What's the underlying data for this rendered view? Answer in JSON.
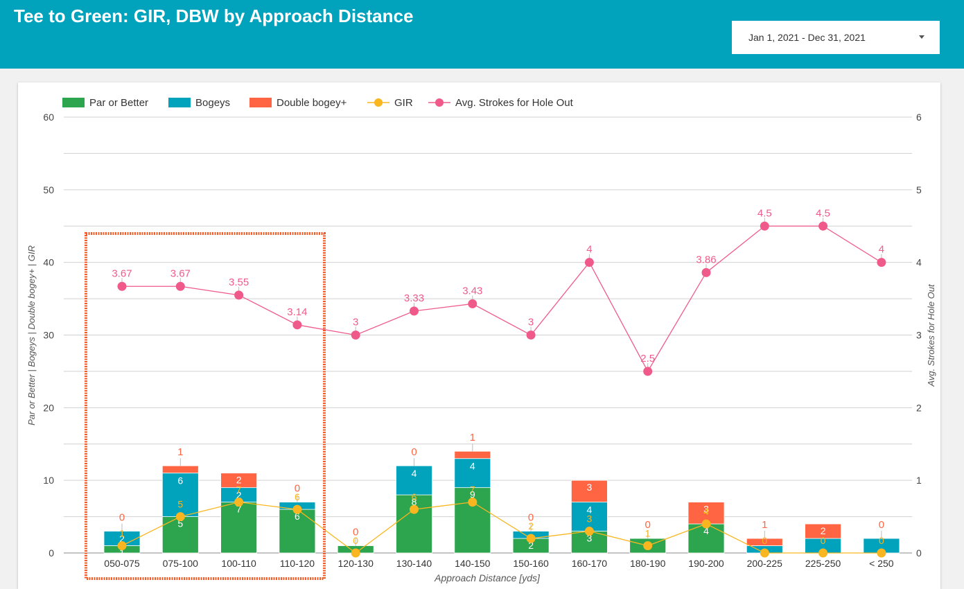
{
  "header": {
    "title": "Tee to Green: GIR, DBW by Approach Distance",
    "date_range": "Jan 1, 2021 - Dec 31, 2021"
  },
  "colors": {
    "header_bg": "#00a2bc",
    "par": "#2da44e",
    "bogey": "#00a2bc",
    "double": "#ff6542",
    "gir": "#f9b620",
    "avg": "#ef5a8a",
    "highlight": "#f45a23"
  },
  "chart_data": {
    "type": "bar",
    "stacked": true,
    "xlabel": "Approach Distance [yds]",
    "ylabel": "Par or Better | Bogeys | Double bogey+ | GIR",
    "y2label": "Avg. Strokes for Hole Out",
    "ylim": [
      0,
      60
    ],
    "y2lim": [
      0,
      6
    ],
    "yticks": [
      0,
      10,
      20,
      30,
      40,
      50,
      60
    ],
    "y2ticks": [
      0,
      1,
      2,
      3,
      4,
      5,
      6
    ],
    "legend_position": "top-left",
    "grid": true,
    "categories": [
      "050-075",
      "075-100",
      "100-110",
      "110-120",
      "120-130",
      "130-140",
      "140-150",
      "150-160",
      "160-170",
      "180-190",
      "190-200",
      "200-225",
      "225-250",
      "< 250"
    ],
    "series": [
      {
        "name": "Par or Better",
        "kind": "bar",
        "values": [
          1,
          5,
          7,
          6,
          1,
          8,
          9,
          2,
          3,
          2,
          4,
          0,
          0,
          0
        ]
      },
      {
        "name": "Bogeys",
        "kind": "bar",
        "values": [
          2,
          6,
          2,
          1,
          0,
          4,
          4,
          1,
          4,
          0,
          0,
          1,
          2,
          2
        ]
      },
      {
        "name": "Double bogey+",
        "kind": "bar",
        "values": [
          0,
          1,
          2,
          0,
          0,
          0,
          1,
          0,
          3,
          0,
          3,
          1,
          2,
          0
        ]
      },
      {
        "name": "GIR",
        "kind": "line",
        "axis": "left",
        "values": [
          1,
          5,
          7,
          6,
          0,
          6,
          7,
          2,
          3,
          1,
          4,
          0,
          0,
          0
        ]
      },
      {
        "name": "Avg. Strokes for Hole Out",
        "kind": "line",
        "axis": "right",
        "values": [
          3.67,
          3.67,
          3.55,
          3.14,
          3,
          3.33,
          3.43,
          3,
          4,
          2.5,
          3.86,
          4.5,
          4.5,
          4
        ]
      }
    ]
  }
}
